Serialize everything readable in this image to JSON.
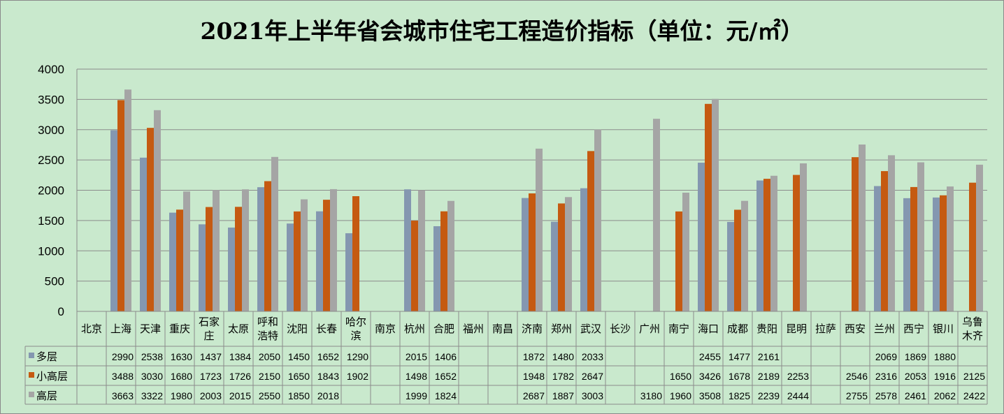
{
  "chart_data": {
    "type": "bar",
    "title": "2021年上半年省会城市住宅工程造价指标（单位：元/㎡）",
    "categories": [
      "北京",
      "上海",
      "天津",
      "重庆",
      "石家庄",
      "太原",
      "呼和浩特",
      "沈阳",
      "长春",
      "哈尔滨",
      "南京",
      "杭州",
      "合肥",
      "福州",
      "南昌",
      "济南",
      "郑州",
      "武汉",
      "长沙",
      "广州",
      "南宁",
      "海口",
      "成都",
      "贵阳",
      "昆明",
      "拉萨",
      "西安",
      "兰州",
      "西宁",
      "银川",
      "乌鲁木齐"
    ],
    "category_display": [
      "北京",
      "上海",
      "天津",
      "重庆",
      "石家\n庄",
      "太原",
      "呼和\n浩特",
      "沈阳",
      "长春",
      "哈尔\n滨",
      "南京",
      "杭州",
      "合肥",
      "福州",
      "南昌",
      "济南",
      "郑州",
      "武汉",
      "长沙",
      "广州",
      "南宁",
      "海口",
      "成都",
      "贵阳",
      "昆明",
      "拉萨",
      "西安",
      "兰州",
      "西宁",
      "银川",
      "乌鲁\n木齐"
    ],
    "series": [
      {
        "name": "多层",
        "color": "#8497b0",
        "values": [
          null,
          2990,
          2538,
          1630,
          1437,
          1384,
          2050,
          1450,
          1652,
          1290,
          null,
          2015,
          1406,
          null,
          null,
          1872,
          1480,
          2033,
          null,
          null,
          null,
          2455,
          1477,
          2161,
          null,
          null,
          null,
          2069,
          1869,
          1880,
          null
        ]
      },
      {
        "name": "小高层",
        "color": "#c55a11",
        "values": [
          null,
          3488,
          3030,
          1680,
          1723,
          1726,
          2150,
          1650,
          1843,
          1902,
          null,
          1498,
          1652,
          null,
          null,
          1948,
          1782,
          2647,
          null,
          null,
          1650,
          3426,
          1678,
          2189,
          2253,
          null,
          2546,
          2316,
          2053,
          1916,
          2125
        ]
      },
      {
        "name": "高层",
        "color": "#a5a5a5",
        "values": [
          null,
          3663,
          3322,
          1980,
          2003,
          2015,
          2550,
          1850,
          2018,
          null,
          null,
          1999,
          1824,
          null,
          null,
          2687,
          1887,
          3003,
          null,
          3180,
          1960,
          3508,
          1825,
          2239,
          2444,
          null,
          2755,
          2578,
          2461,
          2062,
          2422
        ]
      }
    ],
    "ylim": [
      0,
      4000
    ],
    "yticks": [
      "0",
      "500",
      "1000",
      "1500",
      "2000",
      "2500",
      "3000",
      "3500",
      "4000"
    ],
    "grid": true,
    "legend": "data-table"
  }
}
